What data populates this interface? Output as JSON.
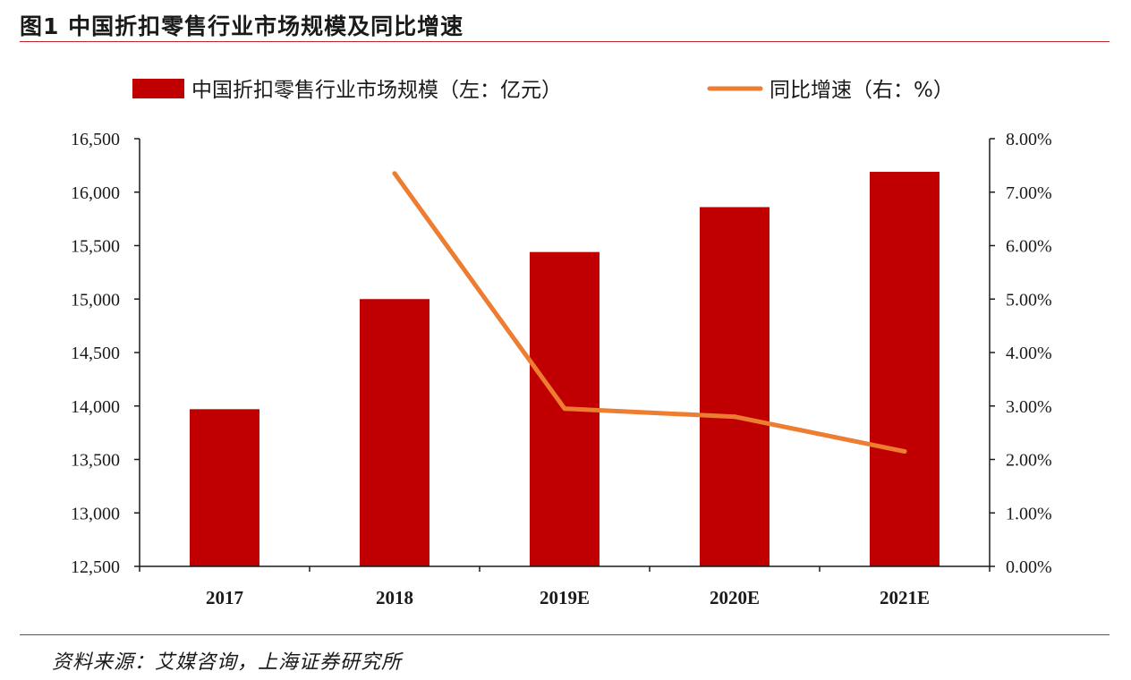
{
  "figure": {
    "title": "图1  中国折扣零售行业市场规模及同比增速",
    "source": "资料来源：艾媒咨询，上海证券研究所"
  },
  "colors": {
    "bar": "#c00000",
    "line": "#ed7d31",
    "axis": "#1a1a1a",
    "rule": "#c0272d"
  },
  "chart_data": {
    "type": "bar",
    "categories": [
      "2017",
      "2018",
      "2019E",
      "2020E",
      "2021E"
    ],
    "series": [
      {
        "name": "中国折扣零售行业市场规模（左：亿元）",
        "type": "bar",
        "axis": "left",
        "values": [
          13970,
          15000,
          15440,
          15860,
          16190
        ]
      },
      {
        "name": "同比增速（右：%）",
        "type": "line",
        "axis": "right",
        "values": [
          null,
          7.35,
          2.95,
          2.8,
          2.15
        ]
      }
    ],
    "y_left": {
      "min": 12500,
      "max": 16500,
      "step": 500,
      "tick_labels": [
        "12,500",
        "13,000",
        "13,500",
        "14,000",
        "14,500",
        "15,000",
        "15,500",
        "16,000",
        "16,500"
      ]
    },
    "y_right": {
      "min": 0,
      "max": 8,
      "step": 1,
      "tick_labels": [
        "0.00%",
        "1.00%",
        "2.00%",
        "3.00%",
        "4.00%",
        "5.00%",
        "6.00%",
        "7.00%",
        "8.00%"
      ]
    },
    "legend_position": "top",
    "grid": false
  }
}
